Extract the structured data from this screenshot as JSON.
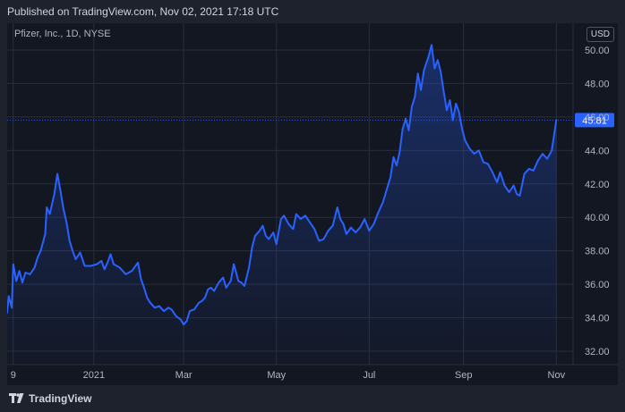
{
  "header": {
    "published": "Published on TradingView.com, Nov 02, 2021 17:18 UTC"
  },
  "symbol": "Pfizer, Inc., 1D, NYSE",
  "currency": "USD",
  "footer": {
    "brand": "TradingView"
  },
  "colors": {
    "background": "#131722",
    "line": "#2962ff",
    "grid": "#2a2e39",
    "current_price_line": "#2962ff",
    "price_label_bg": "#2962ff",
    "axis_text": "#b2b5be"
  },
  "icons": {
    "logo": "tradingview-logo-icon"
  },
  "chart_data": {
    "type": "area",
    "title": "Pfizer, Inc., 1D, NYSE",
    "y_ticks": [
      "32.00",
      "34.00",
      "36.00",
      "38.00",
      "40.00",
      "42.00",
      "44.00",
      "46.00",
      "48.00",
      "50.00"
    ],
    "ylim": [
      31.2,
      51.6
    ],
    "x_ticks": [
      {
        "label": "9",
        "date": "2020-11-09"
      },
      {
        "label": "2021",
        "date": "2021-01-01"
      },
      {
        "label": "Mar",
        "date": "2021-03-01"
      },
      {
        "label": "May",
        "date": "2021-05-01"
      },
      {
        "label": "Jul",
        "date": "2021-07-01"
      },
      {
        "label": "Sep",
        "date": "2021-09-01"
      },
      {
        "label": "Nov",
        "date": "2021-11-01"
      }
    ],
    "xlim": [
      "2020-11-05",
      "2021-11-12"
    ],
    "current_price": 45.81,
    "current_price_label": "45.81",
    "grid": true,
    "series": [
      {
        "values": [
          [
            "2020-11-05",
            34.3
          ],
          [
            "2020-11-06",
            35.3
          ],
          [
            "2020-11-08",
            34.6
          ],
          [
            "2020-11-09",
            37.2
          ],
          [
            "2020-11-11",
            36.2
          ],
          [
            "2020-11-13",
            36.8
          ],
          [
            "2020-11-15",
            36.1
          ],
          [
            "2020-11-17",
            36.7
          ],
          [
            "2020-11-20",
            36.6
          ],
          [
            "2020-11-23",
            37.0
          ],
          [
            "2020-11-25",
            37.6
          ],
          [
            "2020-11-27",
            38.0
          ],
          [
            "2020-11-30",
            39.0
          ],
          [
            "2020-12-01",
            40.6
          ],
          [
            "2020-12-03",
            40.2
          ],
          [
            "2020-12-06",
            41.4
          ],
          [
            "2020-12-08",
            42.6
          ],
          [
            "2020-12-10",
            41.6
          ],
          [
            "2020-12-12",
            40.5
          ],
          [
            "2020-12-14",
            39.7
          ],
          [
            "2020-12-16",
            38.6
          ],
          [
            "2020-12-18",
            38.0
          ],
          [
            "2020-12-20",
            37.5
          ],
          [
            "2020-12-23",
            37.9
          ],
          [
            "2020-12-26",
            37.1
          ],
          [
            "2020-12-30",
            37.1
          ],
          [
            "2021-01-03",
            37.2
          ],
          [
            "2021-01-06",
            37.4
          ],
          [
            "2021-01-08",
            36.9
          ],
          [
            "2021-01-10",
            37.3
          ],
          [
            "2021-01-12",
            37.8
          ],
          [
            "2021-01-14",
            37.2
          ],
          [
            "2021-01-18",
            37.0
          ],
          [
            "2021-01-22",
            36.6
          ],
          [
            "2021-01-26",
            36.8
          ],
          [
            "2021-01-30",
            37.3
          ],
          [
            "2021-02-01",
            36.3
          ],
          [
            "2021-02-03",
            35.8
          ],
          [
            "2021-02-05",
            35.2
          ],
          [
            "2021-02-07",
            34.9
          ],
          [
            "2021-02-10",
            34.6
          ],
          [
            "2021-02-13",
            34.7
          ],
          [
            "2021-02-16",
            34.4
          ],
          [
            "2021-02-19",
            34.6
          ],
          [
            "2021-02-21",
            34.5
          ],
          [
            "2021-02-24",
            34.1
          ],
          [
            "2021-02-27",
            33.9
          ],
          [
            "2021-03-01",
            33.6
          ],
          [
            "2021-03-03",
            33.8
          ],
          [
            "2021-03-05",
            34.4
          ],
          [
            "2021-03-08",
            34.5
          ],
          [
            "2021-03-11",
            34.9
          ],
          [
            "2021-03-13",
            35.0
          ],
          [
            "2021-03-15",
            35.2
          ],
          [
            "2021-03-17",
            35.7
          ],
          [
            "2021-03-19",
            35.8
          ],
          [
            "2021-03-21",
            35.6
          ],
          [
            "2021-03-24",
            36.1
          ],
          [
            "2021-03-27",
            36.4
          ],
          [
            "2021-03-29",
            35.8
          ],
          [
            "2021-04-01",
            36.2
          ],
          [
            "2021-04-03",
            37.2
          ],
          [
            "2021-04-06",
            36.2
          ],
          [
            "2021-04-08",
            36.1
          ],
          [
            "2021-04-10",
            35.9
          ],
          [
            "2021-04-13",
            37.0
          ],
          [
            "2021-04-15",
            38.2
          ],
          [
            "2021-04-17",
            38.9
          ],
          [
            "2021-04-20",
            39.2
          ],
          [
            "2021-04-22",
            39.5
          ],
          [
            "2021-04-24",
            38.9
          ],
          [
            "2021-04-26",
            38.7
          ],
          [
            "2021-04-29",
            39.1
          ],
          [
            "2021-05-01",
            38.4
          ],
          [
            "2021-05-04",
            39.9
          ],
          [
            "2021-05-06",
            40.1
          ],
          [
            "2021-05-09",
            39.6
          ],
          [
            "2021-05-12",
            39.3
          ],
          [
            "2021-05-14",
            40.2
          ],
          [
            "2021-05-17",
            39.9
          ],
          [
            "2021-05-20",
            40.1
          ],
          [
            "2021-05-23",
            39.7
          ],
          [
            "2021-05-26",
            39.3
          ],
          [
            "2021-05-29",
            38.6
          ],
          [
            "2021-06-01",
            38.7
          ],
          [
            "2021-06-04",
            39.2
          ],
          [
            "2021-06-07",
            39.5
          ],
          [
            "2021-06-10",
            40.6
          ],
          [
            "2021-06-12",
            39.9
          ],
          [
            "2021-06-14",
            39.6
          ],
          [
            "2021-06-16",
            39.0
          ],
          [
            "2021-06-19",
            39.4
          ],
          [
            "2021-06-22",
            39.1
          ],
          [
            "2021-06-25",
            39.4
          ],
          [
            "2021-06-28",
            39.9
          ],
          [
            "2021-07-01",
            39.2
          ],
          [
            "2021-07-04",
            39.6
          ],
          [
            "2021-07-07",
            40.3
          ],
          [
            "2021-07-10",
            40.9
          ],
          [
            "2021-07-13",
            41.8
          ],
          [
            "2021-07-15",
            42.4
          ],
          [
            "2021-07-17",
            43.6
          ],
          [
            "2021-07-19",
            43.1
          ],
          [
            "2021-07-21",
            43.9
          ],
          [
            "2021-07-23",
            45.3
          ],
          [
            "2021-07-25",
            45.9
          ],
          [
            "2021-07-27",
            45.2
          ],
          [
            "2021-07-29",
            46.6
          ],
          [
            "2021-07-31",
            47.2
          ],
          [
            "2021-08-02",
            48.6
          ],
          [
            "2021-08-04",
            47.6
          ],
          [
            "2021-08-06",
            48.8
          ],
          [
            "2021-08-09",
            49.6
          ],
          [
            "2021-08-11",
            50.3
          ],
          [
            "2021-08-13",
            48.9
          ],
          [
            "2021-08-15",
            49.4
          ],
          [
            "2021-08-17",
            48.7
          ],
          [
            "2021-08-19",
            47.5
          ],
          [
            "2021-08-21",
            46.4
          ],
          [
            "2021-08-23",
            47.0
          ],
          [
            "2021-08-25",
            45.8
          ],
          [
            "2021-08-27",
            46.8
          ],
          [
            "2021-08-29",
            46.3
          ],
          [
            "2021-08-31",
            45.3
          ],
          [
            "2021-09-02",
            44.6
          ],
          [
            "2021-09-05",
            44.1
          ],
          [
            "2021-09-08",
            43.8
          ],
          [
            "2021-09-11",
            44.0
          ],
          [
            "2021-09-14",
            43.3
          ],
          [
            "2021-09-17",
            43.2
          ],
          [
            "2021-09-20",
            42.7
          ],
          [
            "2021-09-23",
            42.1
          ],
          [
            "2021-09-25",
            42.7
          ],
          [
            "2021-09-28",
            41.9
          ],
          [
            "2021-10-01",
            41.5
          ],
          [
            "2021-10-04",
            41.9
          ],
          [
            "2021-10-06",
            41.4
          ],
          [
            "2021-10-08",
            41.3
          ],
          [
            "2021-10-11",
            42.6
          ],
          [
            "2021-10-14",
            42.9
          ],
          [
            "2021-10-17",
            42.8
          ],
          [
            "2021-10-20",
            43.4
          ],
          [
            "2021-10-23",
            43.8
          ],
          [
            "2021-10-26",
            43.5
          ],
          [
            "2021-10-29",
            44.0
          ],
          [
            "2021-11-01",
            45.81
          ]
        ]
      }
    ]
  }
}
